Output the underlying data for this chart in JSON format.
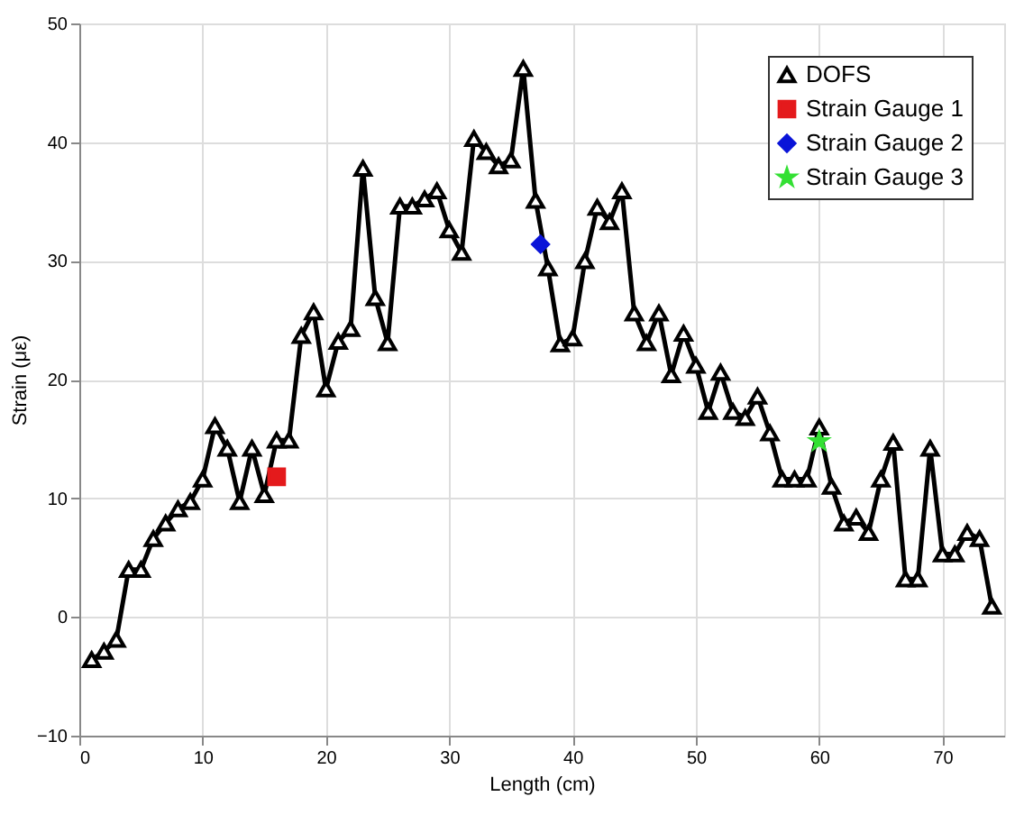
{
  "chart_data": {
    "type": "line",
    "xlabel": "Length (cm)",
    "ylabel": "Strain (με)",
    "xlim": [
      0,
      75
    ],
    "ylim": [
      -10,
      50
    ],
    "xticks": [
      0,
      10,
      20,
      30,
      40,
      50,
      60,
      70
    ],
    "yticks": [
      -10,
      0,
      10,
      20,
      30,
      40,
      50
    ],
    "grid": true,
    "legend": "top right",
    "series": [
      {
        "name": "DOFS",
        "marker": "triangle",
        "color": "#000000",
        "x": [
          1,
          2,
          3,
          4,
          5,
          6,
          7,
          8,
          9,
          10,
          11,
          12,
          13,
          14,
          15,
          16,
          17,
          18,
          19,
          20,
          21,
          22,
          23,
          24,
          25,
          26,
          27,
          28,
          29,
          30,
          31,
          32,
          33,
          34,
          35,
          36,
          37,
          38,
          39,
          40,
          41,
          42,
          43,
          44,
          45,
          46,
          47,
          48,
          49,
          50,
          51,
          52,
          53,
          54,
          55,
          56,
          57,
          58,
          59,
          60,
          61,
          62,
          63,
          64,
          65,
          66,
          67,
          68,
          69,
          70,
          71,
          72,
          73,
          74
        ],
        "values": [
          -3.6,
          -2.9,
          -1.9,
          4.0,
          4.0,
          6.6,
          7.9,
          9.1,
          9.7,
          11.6,
          16.1,
          14.2,
          9.7,
          14.2,
          10.3,
          14.9,
          14.9,
          23.7,
          25.7,
          19.2,
          23.2,
          24.3,
          37.8,
          26.9,
          23.1,
          34.6,
          34.6,
          35.2,
          35.9,
          32.6,
          30.7,
          40.3,
          39.2,
          38.0,
          38.5,
          46.2,
          35.1,
          29.4,
          23.0,
          23.5,
          30.0,
          34.5,
          33.3,
          35.9,
          25.6,
          23.1,
          25.6,
          20.4,
          23.9,
          21.2,
          17.3,
          20.6,
          17.3,
          16.8,
          18.6,
          15.5,
          11.6,
          11.6,
          11.6,
          16.0,
          11.0,
          7.9,
          8.4,
          7.1,
          11.6,
          14.7,
          3.2,
          3.2,
          14.2,
          5.3,
          5.3,
          7.1,
          6.6,
          0.9
        ]
      },
      {
        "name": "Strain Gauge 1",
        "type": "scatter",
        "marker": "square",
        "color": "#e41a1c",
        "x": [
          16.0
        ],
        "values": [
          11.8
        ]
      },
      {
        "name": "Strain Gauge 2",
        "type": "scatter",
        "marker": "diamond",
        "color": "#0a14d8",
        "x": [
          37.4
        ],
        "values": [
          31.4
        ]
      },
      {
        "name": "Strain Gauge 3",
        "type": "scatter",
        "marker": "star",
        "color": "#33e033",
        "x": [
          60.0
        ],
        "values": [
          14.8
        ]
      }
    ]
  }
}
